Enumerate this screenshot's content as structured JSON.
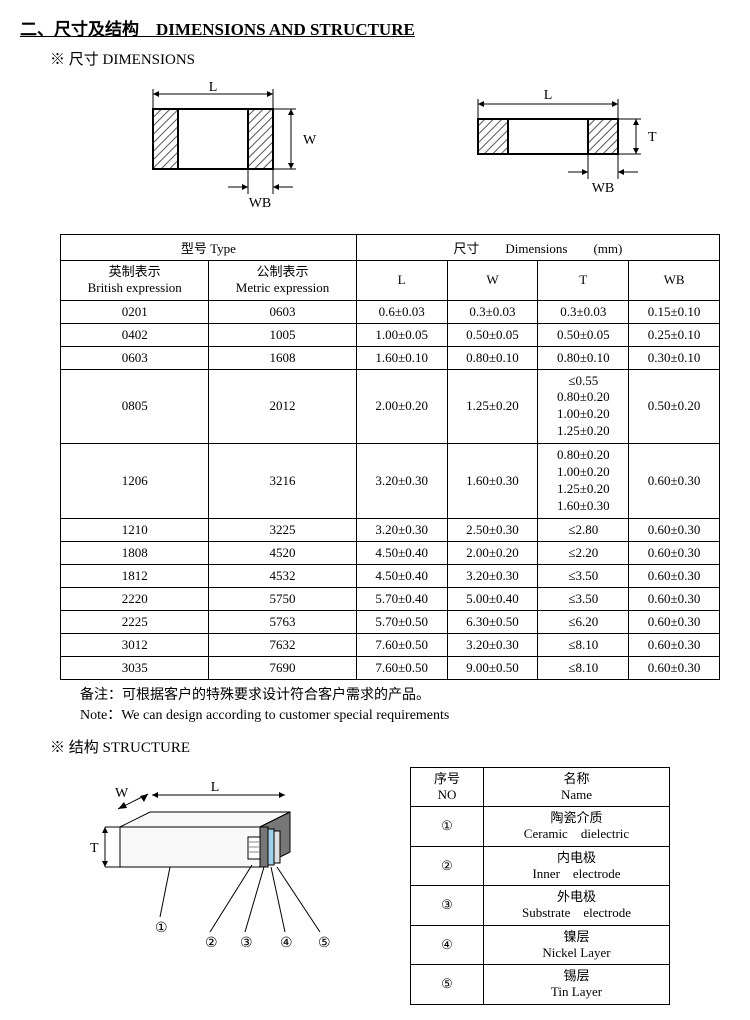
{
  "section": {
    "title": "二、尺寸及结构　DIMENSIONS AND STRUCTURE",
    "dims_subtitle": "※ 尺寸 DIMENSIONS",
    "struct_subtitle": "※ 结构 STRUCTURE"
  },
  "diagram1": {
    "L": "L",
    "W": "W",
    "WB": "WB"
  },
  "diagram2": {
    "L": "L",
    "T": "T",
    "WB": "WB"
  },
  "dims_table": {
    "header_type": "型号 Type",
    "header_dims": "尺寸　　Dimensions　　(mm)",
    "col_british_cn": "英制表示",
    "col_british_en": "British expression",
    "col_metric_cn": "公制表示",
    "col_metric_en": "Metric expression",
    "col_L": "L",
    "col_W": "W",
    "col_T": "T",
    "col_WB": "WB",
    "rows": [
      {
        "b": "0201",
        "m": "0603",
        "L": "0.6±0.03",
        "W": "0.3±0.03",
        "T": "0.3±0.03",
        "WB": "0.15±0.10"
      },
      {
        "b": "0402",
        "m": "1005",
        "L": "1.00±0.05",
        "W": "0.50±0.05",
        "T": "0.50±0.05",
        "WB": "0.25±0.10"
      },
      {
        "b": "0603",
        "m": "1608",
        "L": "1.60±0.10",
        "W": "0.80±0.10",
        "T": "0.80±0.10",
        "WB": "0.30±0.10"
      },
      {
        "b": "0805",
        "m": "2012",
        "L": "2.00±0.20",
        "W": "1.25±0.20",
        "T": "≤0.55\n0.80±0.20\n1.00±0.20\n1.25±0.20",
        "WB": "0.50±0.20"
      },
      {
        "b": "1206",
        "m": "3216",
        "L": "3.20±0.30",
        "W": "1.60±0.30",
        "T": "0.80±0.20\n1.00±0.20\n1.25±0.20\n1.60±0.30",
        "WB": "0.60±0.30"
      },
      {
        "b": "1210",
        "m": "3225",
        "L": "3.20±0.30",
        "W": "2.50±0.30",
        "T": "≤2.80",
        "WB": "0.60±0.30"
      },
      {
        "b": "1808",
        "m": "4520",
        "L": "4.50±0.40",
        "W": "2.00±0.20",
        "T": "≤2.20",
        "WB": "0.60±0.30"
      },
      {
        "b": "1812",
        "m": "4532",
        "L": "4.50±0.40",
        "W": "3.20±0.30",
        "T": "≤3.50",
        "WB": "0.60±0.30"
      },
      {
        "b": "2220",
        "m": "5750",
        "L": "5.70±0.40",
        "W": "5.00±0.40",
        "T": "≤3.50",
        "WB": "0.60±0.30"
      },
      {
        "b": "2225",
        "m": "5763",
        "L": "5.70±0.50",
        "W": "6.30±0.50",
        "T": "≤6.20",
        "WB": "0.60±0.30"
      },
      {
        "b": "3012",
        "m": "7632",
        "L": "7.60±0.50",
        "W": "3.20±0.30",
        "T": "≤8.10",
        "WB": "0.60±0.30"
      },
      {
        "b": "3035",
        "m": "7690",
        "L": "7.60±0.50",
        "W": "9.00±0.50",
        "T": "≤8.10",
        "WB": "0.60±0.30"
      }
    ]
  },
  "notes": {
    "cn": "备注：可根据客户的特殊要求设计符合客户需求的产品。",
    "en": "Note：We can design according to customer special requirements"
  },
  "struct_diagram": {
    "W": "W",
    "L": "L",
    "T": "T",
    "c1": "①",
    "c2": "②",
    "c3": "③",
    "c4": "④",
    "c5": "⑤"
  },
  "struct_table": {
    "head_no_cn": "序号",
    "head_no_en": "NO",
    "head_name_cn": "名称",
    "head_name_en": "Name",
    "rows": [
      {
        "no": "①",
        "cn": "陶瓷介质",
        "en": "Ceramic　dielectric"
      },
      {
        "no": "②",
        "cn": "内电极",
        "en": "Inner　electrode"
      },
      {
        "no": "③",
        "cn": "外电极",
        "en": "Substrate　electrode"
      },
      {
        "no": "④",
        "cn": "镍层",
        "en": "Nickel Layer"
      },
      {
        "no": "⑤",
        "cn": "锡层",
        "en": "Tin Layer"
      }
    ]
  },
  "colors": {
    "hatch": "#555555",
    "line": "#000000",
    "ceramic": "#f8f8f8",
    "electrode_inner": "#b0b0b0",
    "electrode_sub": "#777777",
    "nickel": "#9fd0e8",
    "tin": "#e0e0e0"
  }
}
